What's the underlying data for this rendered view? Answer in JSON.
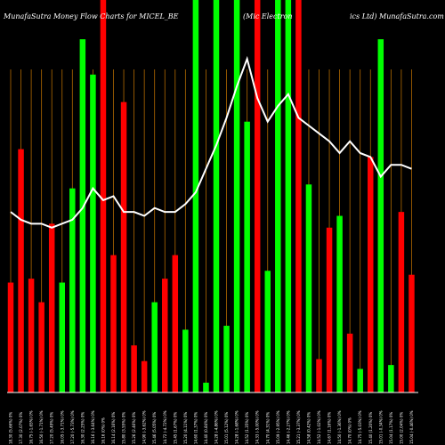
{
  "chart_data": {
    "type": "bar",
    "title": "MunafaSutra  Money Flow  Charts for MICEL_BE",
    "subtitle_left": "(Mic Electron",
    "subtitle_right": "ics Ltd) MunafaSutra.com",
    "x_tick_labels": [
      "18.30 (5.66%) 0%",
      "17.30 (2.07%) 0%",
      "16.75 (-1.65%) 0%",
      "16.50 (-1.71%) 0%",
      "17.20 (5.49%) 0%",
      "16.05 (-3.71%) 0%",
      "17.20 (-5.73%) 0%",
      "16.30 (2.25%) 0%",
      "16.16 (-3.64%) 0%",
      "16.16 (0%) 0%",
      "16.14 (2.16%) 0%",
      "15.80 (3.55%) 0%",
      "15.26 (2.46%) 0%",
      "14.90 (-3.62%) 0%",
      "15.46 (5.05%) 0%",
      "14.72 (-4.72%) 0%",
      "15.45 (1.67%) 0%",
      "15.20 (4.11%) 0%",
      "14.60 (1.37%) 0%",
      "14.40 (0.84%) 0%",
      "14.28 (-4.86%) 0%",
      "15.01 (5.12%) 0%",
      "14.28 (-1.68%) 0%",
      "14.52 (1.35%) 0%",
      "14.33 (-5.00%) 0%",
      "14.70 (4.31%) 0%",
      "15.09 (-2.95%) 0%",
      "14.46 (-2.27%) 0%",
      "15.21 (-3.37%) 0%",
      "14.58 (0.42%) 0%",
      "14.52 (-1.02%) 0%",
      "14.67 (1.16%) 0%",
      "14.50 (-1.36%) 0%",
      "14.70 (0%) 0%",
      "14.75 (-5.03%) 0%",
      "15.40 (1.20%) 0%",
      "15.01 (-0.34%) 0%",
      "15.04 (1.17%) 0%",
      "15.00 (2.04%) 0%",
      "15.04 (-0.46%) 0%"
    ],
    "bar_colors": {
      "up": "#00ff00",
      "down": "#ff0000",
      "vline": "#b36a00",
      "line": "#ffffff"
    },
    "bars": [
      {
        "dir": "down",
        "value": 0.28
      },
      {
        "dir": "down",
        "value": 0.62
      },
      {
        "dir": "down",
        "value": 0.29
      },
      {
        "dir": "down",
        "value": 0.23
      },
      {
        "dir": "down",
        "value": 0.43
      },
      {
        "dir": "up",
        "value": 0.28
      },
      {
        "dir": "up",
        "value": 0.52
      },
      {
        "dir": "up",
        "value": 0.9
      },
      {
        "dir": "up",
        "value": 0.81
      },
      {
        "dir": "down",
        "value": 1.0
      },
      {
        "dir": "down",
        "value": 0.35
      },
      {
        "dir": "down",
        "value": 0.74
      },
      {
        "dir": "down",
        "value": 0.12
      },
      {
        "dir": "down",
        "value": 0.08
      },
      {
        "dir": "up",
        "value": 0.23
      },
      {
        "dir": "down",
        "value": 0.29
      },
      {
        "dir": "down",
        "value": 0.35
      },
      {
        "dir": "up",
        "value": 0.16
      },
      {
        "dir": "up",
        "value": 1.0
      },
      {
        "dir": "up",
        "value": 0.025
      },
      {
        "dir": "up",
        "value": 1.0
      },
      {
        "dir": "up",
        "value": 0.17
      },
      {
        "dir": "up",
        "value": 1.0
      },
      {
        "dir": "up",
        "value": 0.69
      },
      {
        "dir": "down",
        "value": 1.0
      },
      {
        "dir": "up",
        "value": 0.31
      },
      {
        "dir": "up",
        "value": 1.0
      },
      {
        "dir": "up",
        "value": 1.0
      },
      {
        "dir": "down",
        "value": 1.0
      },
      {
        "dir": "up",
        "value": 0.53
      },
      {
        "dir": "down",
        "value": 0.085
      },
      {
        "dir": "down",
        "value": 0.42
      },
      {
        "dir": "up",
        "value": 0.45
      },
      {
        "dir": "down",
        "value": 0.15
      },
      {
        "dir": "up",
        "value": 0.06
      },
      {
        "dir": "down",
        "value": 0.6
      },
      {
        "dir": "up",
        "value": 0.9
      },
      {
        "dir": "up",
        "value": 0.07
      },
      {
        "dir": "down",
        "value": 0.46
      },
      {
        "dir": "down",
        "value": 0.3
      }
    ],
    "line": [
      0.46,
      0.44,
      0.43,
      0.43,
      0.42,
      0.43,
      0.44,
      0.47,
      0.52,
      0.49,
      0.5,
      0.46,
      0.46,
      0.45,
      0.47,
      0.46,
      0.46,
      0.48,
      0.51,
      0.57,
      0.63,
      0.7,
      0.78,
      0.85,
      0.75,
      0.69,
      0.73,
      0.76,
      0.7,
      0.68,
      0.66,
      0.64,
      0.61,
      0.64,
      0.61,
      0.6,
      0.55,
      0.58,
      0.58,
      0.57
    ]
  }
}
